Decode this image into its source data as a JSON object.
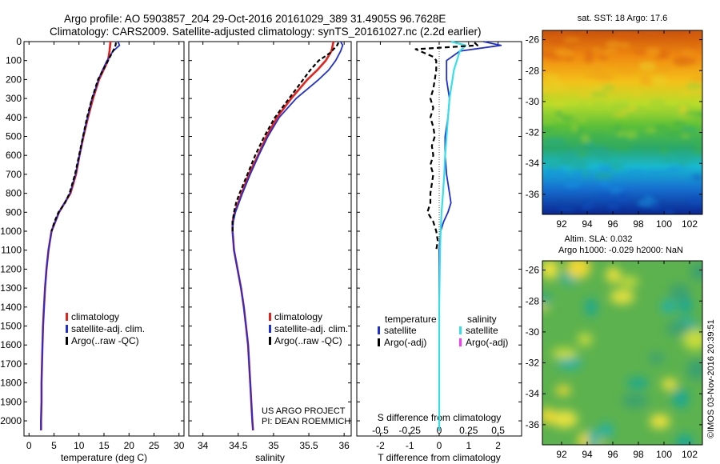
{
  "header": {
    "line1": "Argo profile: AO 5903857_204 29-Oct-2016 20161029_389 31.4905S 96.7628E",
    "line2": "Climatology: CARS2009. Satellite-adjusted climatology: synTS_20161027.nc (2.2d earlier)"
  },
  "credit": {
    "line1": "US ARGO PROJECT",
    "line2": "PI: DEAN ROEMMICH",
    "imos": "©IMOS 03-Nov-2016 20:39:51"
  },
  "colors": {
    "climatology": "#e8201a",
    "satellite": "#1f2fd8",
    "argo": "#000000",
    "sal_satellite": "#33e0e8",
    "sal_argo": "#ff33ff"
  },
  "chart_data": [
    {
      "type": "line",
      "name": "temperature-profile",
      "xlabel": "temperature (deg C)",
      "ylabel": "",
      "xlim": [
        -1,
        31
      ],
      "ylim": [
        2080,
        0
      ],
      "xticks": [
        0,
        5,
        10,
        15,
        20,
        25,
        30
      ],
      "yticks": [
        0,
        100,
        200,
        300,
        400,
        500,
        600,
        700,
        800,
        900,
        1000,
        1100,
        1200,
        1300,
        1400,
        1500,
        1600,
        1700,
        1800,
        1900,
        2000
      ],
      "legend": [
        "climatology",
        "satellite-adj. clim.",
        "Argo(..raw -QC)"
      ],
      "series": [
        {
          "name": "climatology",
          "color": "#e8201a",
          "width": 2.6,
          "depth": [
            0,
            50,
            100,
            150,
            200,
            250,
            300,
            400,
            500,
            600,
            700,
            800,
            900,
            1000,
            1100,
            1200,
            1300,
            1400,
            1500,
            1600,
            1700,
            1800,
            1900,
            2000,
            2050
          ],
          "values": [
            16.3,
            16.1,
            15.8,
            14.9,
            14.0,
            13.4,
            12.8,
            11.8,
            10.9,
            10.1,
            9.4,
            8.3,
            6.0,
            4.5,
            3.9,
            3.5,
            3.2,
            3.0,
            2.8,
            2.7,
            2.6,
            2.5,
            2.5,
            2.4,
            2.4
          ]
        },
        {
          "name": "satellite-adj. clim.",
          "color": "#1f2fd8",
          "width": 1.8,
          "depth": [
            0,
            20,
            50,
            100,
            150,
            200,
            250,
            300,
            400,
            500,
            600,
            700,
            800,
            900,
            1000,
            1100,
            1200,
            1300,
            1400,
            1500,
            1600,
            1700,
            1800,
            1900,
            2000,
            2050
          ],
          "values": [
            17.8,
            18.1,
            16.8,
            15.6,
            14.7,
            13.9,
            13.3,
            12.6,
            11.7,
            10.8,
            10.1,
            9.3,
            8.2,
            6.0,
            4.5,
            3.9,
            3.5,
            3.2,
            3.0,
            2.8,
            2.7,
            2.6,
            2.5,
            2.5,
            2.4,
            2.4
          ]
        },
        {
          "name": "Argo(..raw -QC)",
          "color": "#000000",
          "width": 2.2,
          "dash": "5,3",
          "depth": [
            5,
            20,
            40,
            60,
            80,
            100,
            150,
            200,
            250,
            300,
            400,
            500,
            600,
            700,
            800,
            850,
            900,
            950,
            1000
          ],
          "values": [
            17.4,
            17.3,
            17.0,
            16.6,
            16.2,
            15.8,
            14.8,
            13.8,
            13.2,
            12.6,
            11.6,
            10.8,
            10.0,
            9.2,
            8.1,
            7.2,
            5.9,
            5.1,
            4.5
          ]
        }
      ]
    },
    {
      "type": "line",
      "name": "salinity-profile",
      "xlabel": "salinity",
      "ylabel": "",
      "xlim": [
        33.8,
        36.1
      ],
      "ylim": [
        2080,
        0
      ],
      "xticks": [
        34,
        34.5,
        35,
        35.5,
        36
      ],
      "legend": [
        "climatology",
        "satellite-adj. clim.",
        "Argo(..raw -QC)"
      ],
      "series": [
        {
          "name": "climatology",
          "color": "#e8201a",
          "width": 2.6,
          "depth": [
            0,
            50,
            100,
            150,
            200,
            300,
            400,
            500,
            600,
            700,
            800,
            900,
            950,
            1000,
            1100,
            1200,
            1300,
            1400,
            1500,
            1600,
            1800,
            2000,
            2050
          ],
          "values": [
            35.85,
            35.82,
            35.74,
            35.62,
            35.48,
            35.25,
            35.05,
            34.9,
            34.78,
            34.65,
            34.55,
            34.45,
            34.42,
            34.42,
            34.44,
            34.49,
            34.54,
            34.58,
            34.61,
            34.64,
            34.67,
            34.7,
            34.71
          ]
        },
        {
          "name": "satellite-adj. clim.",
          "color": "#1f2fd8",
          "width": 1.8,
          "depth": [
            0,
            20,
            50,
            100,
            150,
            200,
            250,
            300,
            400,
            500,
            600,
            700,
            800,
            900,
            950,
            1000,
            1100,
            1200,
            1300,
            1400,
            1500,
            1600,
            1800,
            2000,
            2050
          ],
          "values": [
            35.95,
            35.98,
            35.95,
            35.88,
            35.78,
            35.64,
            35.48,
            35.32,
            35.08,
            34.92,
            34.79,
            34.67,
            34.56,
            34.46,
            34.43,
            34.42,
            34.44,
            34.49,
            34.54,
            34.58,
            34.61,
            34.64,
            34.67,
            34.7,
            34.71
          ]
        },
        {
          "name": "Argo(..raw -QC)",
          "color": "#000000",
          "width": 2.2,
          "dash": "5,3",
          "depth": [
            5,
            20,
            40,
            60,
            80,
            100,
            150,
            200,
            250,
            300,
            400,
            500,
            600,
            700,
            800,
            850,
            900,
            950,
            1000
          ],
          "values": [
            35.92,
            35.9,
            35.85,
            35.8,
            35.72,
            35.64,
            35.52,
            35.42,
            35.32,
            35.22,
            35.02,
            34.87,
            34.74,
            34.63,
            34.52,
            34.47,
            34.44,
            34.42,
            34.42
          ]
        }
      ]
    },
    {
      "type": "line",
      "name": "difference-profile",
      "xlabel": "T difference from climatology",
      "xlabel2": "S difference from climatology",
      "ylabel": "",
      "xlim": [
        -2.8,
        2.8
      ],
      "ylim": [
        2080,
        0
      ],
      "xticks": [
        -2,
        -1,
        0,
        1,
        2
      ],
      "xtick_labels2": [
        "-0.5",
        "-0.25",
        "0",
        "0.25",
        "0.5"
      ],
      "legend_title_t": "temperature",
      "legend_title_s": "salinity",
      "legend": [
        "satellite",
        "Argo(-adj)",
        "satellite",
        "Argo(-adj)"
      ],
      "series": [
        {
          "name": "temperature satellite",
          "color": "#1f2fd8",
          "width": 1.8,
          "depth": [
            0,
            20,
            50,
            100,
            150,
            200,
            250,
            300,
            400,
            500,
            600,
            700,
            800,
            850,
            900,
            950,
            1000,
            1100,
            1200,
            1400,
            1600,
            1800,
            2000,
            2050
          ],
          "values": [
            1.5,
            2.1,
            0.7,
            0.25,
            0.25,
            0.25,
            0.3,
            0.35,
            0.3,
            0.2,
            0.2,
            0.25,
            0.35,
            0.4,
            0.3,
            0.15,
            0.05,
            0.0,
            0.0,
            0.0,
            0.0,
            0.0,
            0.0,
            0.0
          ]
        },
        {
          "name": "salinity satellite",
          "color": "#33e0e8",
          "width": 2.2,
          "depth": [
            0,
            20,
            50,
            100,
            150,
            200,
            250,
            300,
            400,
            500,
            600,
            700,
            800,
            900,
            1000,
            1100,
            1200,
            1400,
            1600,
            1800,
            2000,
            2050
          ],
          "values": [
            0.4,
            0.9,
            0.7,
            0.6,
            0.5,
            0.45,
            0.4,
            0.35,
            0.3,
            0.25,
            0.2,
            0.17,
            0.13,
            0.08,
            0.05,
            0.03,
            0.02,
            0.0,
            0.0,
            0.0,
            0.0,
            0.0
          ]
        },
        {
          "name": "Argo T difference",
          "color": "#000000",
          "width": 2.2,
          "dash": "6,4",
          "depth": [
            5,
            20,
            40,
            60,
            80,
            100,
            150,
            200,
            250,
            300,
            350,
            400,
            450,
            500,
            550,
            600,
            650,
            700,
            750,
            800,
            850,
            900,
            950,
            1000,
            1050,
            1100
          ],
          "values": [
            1.2,
            1.3,
            -0.8,
            -0.5,
            -0.2,
            -0.1,
            -0.1,
            -0.15,
            -0.2,
            -0.3,
            -0.2,
            -0.3,
            -0.2,
            -0.15,
            -0.25,
            -0.2,
            -0.3,
            -0.2,
            -0.25,
            -0.3,
            -0.3,
            -0.4,
            -0.2,
            -0.1,
            -0.05,
            -0.1
          ]
        }
      ]
    },
    {
      "type": "heatmap",
      "name": "sst-map",
      "title": "sat. SST: 18 Argo: 17.6",
      "x_range": [
        90.5,
        103
      ],
      "y_range": [
        -37.3,
        -25.4
      ],
      "xticks": [
        92,
        94,
        96,
        98,
        100,
        102
      ],
      "yticks": [
        -26,
        -28,
        -30,
        -32,
        -34,
        -36
      ]
    },
    {
      "type": "heatmap",
      "name": "sla-map",
      "title": "Altim. SLA: 0.032",
      "subtitle": "Argo h1000: -0.029 h2000: NaN",
      "x_range": [
        90.5,
        103
      ],
      "y_range": [
        -37.3,
        -25.4
      ],
      "xticks": [
        92,
        94,
        96,
        98,
        100,
        102
      ],
      "yticks": [
        -26,
        -28,
        -30,
        -32,
        -34,
        -36
      ]
    }
  ]
}
